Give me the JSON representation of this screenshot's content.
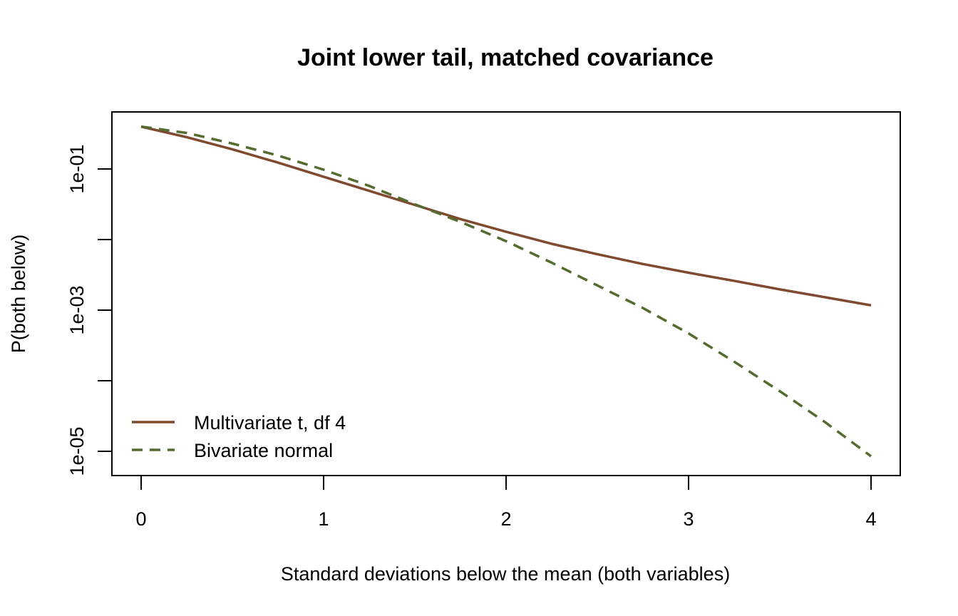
{
  "chart_data": {
    "type": "line",
    "title": "Joint lower tail, matched covariance",
    "xlabel": "Standard deviations below the mean (both variables)",
    "ylabel": "P(both below)",
    "xlim": [
      0,
      4
    ],
    "ylim_log10": [
      -5.35,
      0.3
    ],
    "y_scale": "log",
    "x_ticks": [
      "0",
      "1",
      "2",
      "3",
      "4"
    ],
    "y_ticks": [
      {
        "value": 0.1,
        "label": "1e-01"
      },
      {
        "value": 0.01,
        "label": ""
      },
      {
        "value": 0.001,
        "label": "1e-03"
      },
      {
        "value": 0.0001,
        "label": ""
      },
      {
        "value": 1e-05,
        "label": "1e-05"
      }
    ],
    "grid": false,
    "legend_position": "bottom-left",
    "series": [
      {
        "name": "Multivariate t, df 4",
        "color": "#7f4a2f",
        "dash": "solid",
        "x": [
          0,
          0.25,
          0.5,
          0.75,
          1.0,
          1.25,
          1.5,
          1.75,
          2.0,
          2.25,
          2.5,
          2.75,
          3.0,
          3.25,
          3.5,
          3.75,
          4.0
        ],
        "y": [
          0.398,
          0.282,
          0.19,
          0.123,
          0.0776,
          0.049,
          0.0309,
          0.0195,
          0.0129,
          0.0087,
          0.0062,
          0.0045,
          0.00339,
          0.0026,
          0.00197,
          0.00152,
          0.00117
        ]
      },
      {
        "name": "Bivariate normal",
        "color": "#556b2f",
        "dash": "dashed",
        "x": [
          0,
          0.25,
          0.5,
          0.75,
          1.0,
          1.25,
          1.5,
          1.75,
          2.0,
          2.25,
          2.5,
          2.75,
          3.0,
          3.25,
          3.5,
          3.75,
          4.0
        ],
        "y": [
          0.398,
          0.324,
          0.229,
          0.155,
          0.0977,
          0.0575,
          0.0316,
          0.0178,
          0.0095,
          0.0047,
          0.00224,
          0.00107,
          0.000468,
          0.000186,
          7.1e-05,
          2.57e-05,
          8.5e-06
        ]
      }
    ]
  }
}
